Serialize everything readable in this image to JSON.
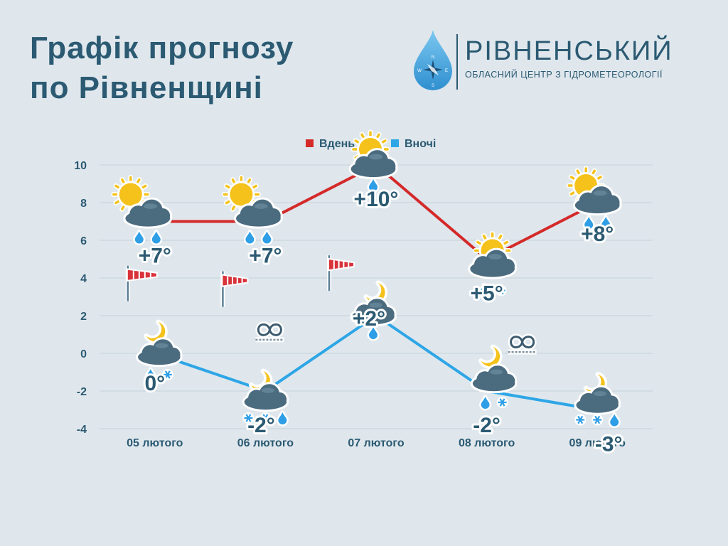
{
  "page": {
    "title_line1": "Графік прогнозу",
    "title_line2": "по Рівненщині"
  },
  "logo": {
    "name": "РІВНЕНСЬКИЙ",
    "subtitle": "ОБЛАСНИЙ ЦЕНТР З ГІДРОМЕТЕОРОЛОГІЇ",
    "compass_letters": [
      "N",
      "E",
      "S",
      "W"
    ]
  },
  "colors": {
    "background": "#dfe7ed",
    "title": "#2b5a72",
    "day_series": "#d42a2a",
    "night_series": "#2ea6e6",
    "sun": "#f5c21b",
    "cloud": "#4b6b7f",
    "rain": "#2e9ee6",
    "grid": "#c6d1d9"
  },
  "chart_data": {
    "type": "line",
    "title": "",
    "xlabel": "",
    "ylabel": "",
    "ylim": [
      -4,
      10
    ],
    "yticks": [
      10,
      8,
      6,
      4,
      2,
      0,
      -2,
      -4
    ],
    "grid": true,
    "legend_position": "top-center",
    "categories": [
      "05 лютого",
      "06 лютого",
      "07 лютого",
      "08 лютого",
      "09 лютого"
    ],
    "series": [
      {
        "name": "Вдень",
        "values": [
          7,
          7,
          10,
          5,
          8
        ],
        "labels": [
          "+7°",
          "+7°",
          "+10°",
          "+5°",
          "+8°"
        ],
        "icons": [
          "sun-cloud-rain-icon",
          "sun-cloud-rain-icon",
          "sun-cloud-rain-icon",
          "sun-cloud-rain-snow-icon",
          "sun-cloud-rain-icon"
        ]
      },
      {
        "name": "Вночі",
        "values": [
          0,
          -2,
          2,
          -2,
          -3
        ],
        "labels": [
          "0°",
          "-2°",
          "+2°",
          "-2°",
          "-3°"
        ],
        "icons": [
          "moon-cloud-rain-snow-icon",
          "moon-cloud-snow-rain-icon",
          "moon-cloud-rain-icon",
          "moon-cloud-rain-snow-icon",
          "moon-cloud-snow-rain-icon"
        ]
      }
    ],
    "wind_flags": [
      "05 лютого",
      "06 лютого",
      "07 лютого"
    ],
    "fog_icons": [
      "06 лютого",
      "08 лютого"
    ]
  }
}
